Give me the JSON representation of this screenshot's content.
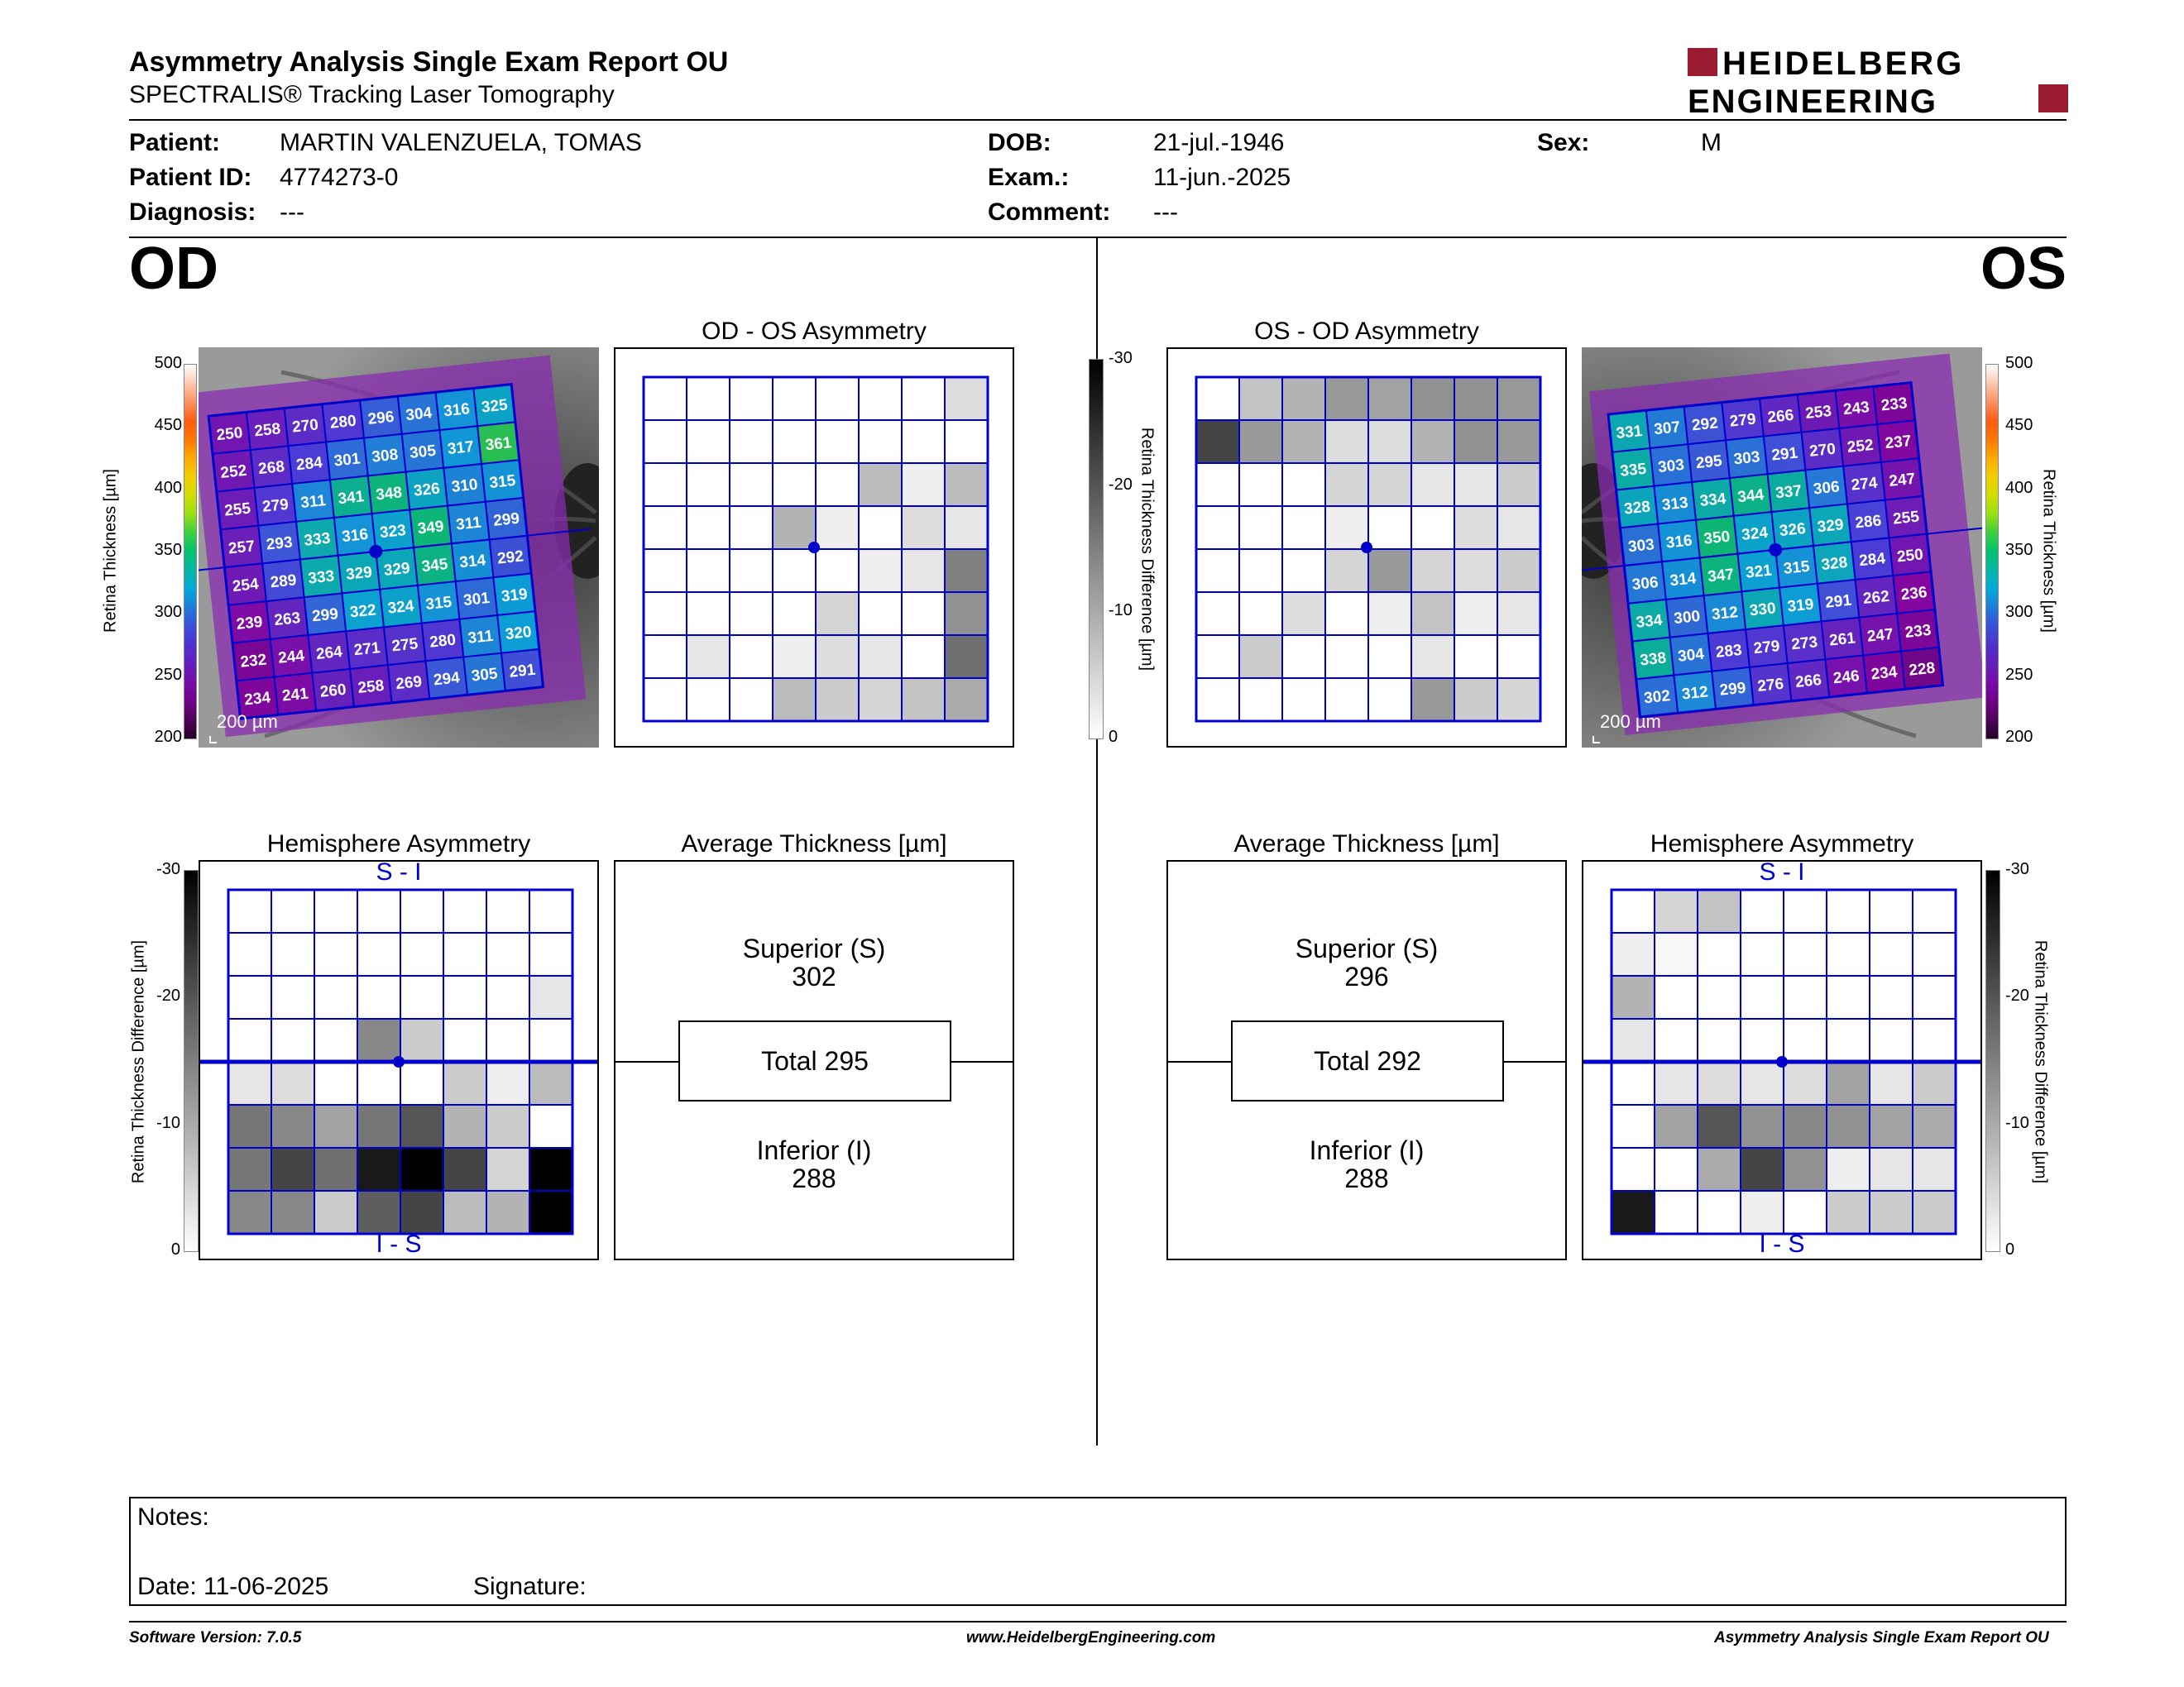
{
  "header": {
    "title": "Asymmetry Analysis Single Exam Report OU",
    "subtitle": "SPECTRALIS® Tracking Laser Tomography",
    "logo_line1": "HEIDELBERG",
    "logo_line2": "ENGINEERING",
    "logo_color": "#9b1b30"
  },
  "patient": {
    "patient_label": "Patient:",
    "patient_value": "MARTIN VALENZUELA, TOMAS",
    "id_label": "Patient ID:",
    "id_value": "4774273-0",
    "diagnosis_label": "Diagnosis:",
    "diagnosis_value": "---",
    "dob_label": "DOB:",
    "dob_value": "21-jul.-1946",
    "exam_label": "Exam.:",
    "exam_value": "11-jun.-2025",
    "comment_label": "Comment:",
    "comment_value": "---",
    "sex_label": "Sex:",
    "sex_value": "M"
  },
  "od": {
    "eye_label": "OD",
    "asym_title": "OD - OS Asymmetry",
    "hemi_title": "Hemisphere Asymmetry",
    "avg_title": "Average Thickness [µm]",
    "scale_label": "200 µm",
    "hemi_top": "S - I",
    "hemi_bottom": "I - S",
    "superior_label": "Superior (S)",
    "superior_value": "302",
    "total_label": "Total 295",
    "inferior_label": "Inferior (I)",
    "inferior_value": "288",
    "thickness_grid": [
      [
        250,
        258,
        270,
        280,
        296,
        304,
        316,
        325
      ],
      [
        252,
        268,
        284,
        301,
        308,
        305,
        317,
        361
      ],
      [
        255,
        279,
        311,
        341,
        348,
        326,
        310,
        315
      ],
      [
        257,
        293,
        333,
        316,
        323,
        349,
        311,
        299
      ],
      [
        254,
        289,
        333,
        329,
        329,
        345,
        314,
        292
      ],
      [
        239,
        263,
        299,
        322,
        324,
        315,
        301,
        319
      ],
      [
        232,
        244,
        264,
        271,
        275,
        280,
        311,
        320
      ],
      [
        234,
        241,
        260,
        258,
        269,
        294,
        305,
        291
      ]
    ],
    "asym_grid": [
      [
        0,
        0,
        0,
        0,
        0,
        0,
        0,
        4
      ],
      [
        0,
        0,
        0,
        0,
        0,
        0,
        0,
        0
      ],
      [
        0,
        0,
        0,
        0,
        0,
        8,
        2,
        8
      ],
      [
        0,
        0,
        0,
        9,
        2,
        0,
        4,
        3
      ],
      [
        0,
        0,
        0,
        0,
        0,
        2,
        3,
        15
      ],
      [
        0,
        0,
        0,
        0,
        5,
        0,
        0,
        13
      ],
      [
        0,
        3,
        0,
        2,
        4,
        3,
        0,
        17
      ],
      [
        0,
        0,
        0,
        8,
        6,
        5,
        7,
        10
      ]
    ],
    "hemi_grid": [
      [
        0,
        0,
        0,
        0,
        0,
        0,
        0,
        0
      ],
      [
        0,
        0,
        0,
        0,
        0,
        0,
        0,
        0
      ],
      [
        0,
        0,
        0,
        0,
        0,
        0,
        0,
        3
      ],
      [
        0,
        0,
        0,
        14,
        6,
        0,
        0,
        0
      ],
      [
        3,
        4,
        0,
        0,
        0,
        6,
        2,
        8
      ],
      [
        16,
        14,
        11,
        16,
        20,
        9,
        6,
        0
      ],
      [
        16,
        22,
        17,
        27,
        30,
        22,
        5,
        30
      ],
      [
        14,
        14,
        6,
        19,
        22,
        8,
        9,
        30
      ]
    ]
  },
  "os": {
    "eye_label": "OS",
    "asym_title": "OS - OD Asymmetry",
    "hemi_title": "Hemisphere Asymmetry",
    "avg_title": "Average Thickness [µm]",
    "scale_label": "200 µm",
    "hemi_top": "S - I",
    "hemi_bottom": "I - S",
    "superior_label": "Superior (S)",
    "superior_value": "296",
    "total_label": "Total 292",
    "inferior_label": "Inferior (I)",
    "inferior_value": "288",
    "thickness_grid": [
      [
        331,
        307,
        292,
        279,
        266,
        253,
        243,
        233
      ],
      [
        335,
        303,
        295,
        303,
        291,
        270,
        252,
        237
      ],
      [
        328,
        313,
        334,
        344,
        337,
        306,
        274,
        247
      ],
      [
        303,
        316,
        350,
        324,
        326,
        329,
        286,
        255
      ],
      [
        306,
        314,
        347,
        321,
        315,
        328,
        284,
        250
      ],
      [
        334,
        300,
        312,
        330,
        319,
        291,
        262,
        236
      ],
      [
        338,
        304,
        283,
        279,
        273,
        261,
        247,
        233
      ],
      [
        302,
        312,
        299,
        276,
        266,
        246,
        234,
        228
      ]
    ],
    "asym_grid": [
      [
        0,
        7,
        9,
        12,
        11,
        13,
        13,
        12
      ],
      [
        22,
        12,
        9,
        4,
        4,
        9,
        13,
        12
      ],
      [
        0,
        0,
        0,
        5,
        5,
        3,
        3,
        6
      ],
      [
        0,
        0,
        0,
        2,
        0,
        0,
        4,
        3
      ],
      [
        0,
        0,
        0,
        5,
        12,
        5,
        4,
        6
      ],
      [
        0,
        0,
        4,
        0,
        2,
        7,
        2,
        3
      ],
      [
        0,
        6,
        0,
        0,
        0,
        3,
        0,
        0
      ],
      [
        0,
        0,
        0,
        0,
        0,
        12,
        6,
        5
      ]
    ],
    "hemi_grid": [
      [
        0,
        5,
        7,
        0,
        0,
        0,
        0,
        0
      ],
      [
        2,
        1,
        0,
        0,
        0,
        0,
        0,
        0
      ],
      [
        9,
        0,
        0,
        0,
        0,
        0,
        0,
        0
      ],
      [
        3,
        0,
        0,
        0,
        0,
        0,
        0,
        0
      ],
      [
        0,
        3,
        4,
        3,
        4,
        11,
        3,
        6
      ],
      [
        0,
        11,
        20,
        13,
        14,
        13,
        11,
        10
      ],
      [
        0,
        0,
        10,
        22,
        13,
        2,
        3,
        3
      ],
      [
        27,
        0,
        0,
        2,
        0,
        6,
        6,
        6
      ]
    ]
  },
  "thickness_scale": {
    "label": "Retina Thickness [µm]",
    "ticks": [
      "500",
      "450",
      "400",
      "350",
      "300",
      "250",
      "200"
    ]
  },
  "difference_scale": {
    "label": "Retina Thickness Difference [µm]",
    "ticks": [
      "-30",
      "-20",
      "-10",
      "0"
    ]
  },
  "notes": {
    "notes_label": "Notes:",
    "date_label": "Date: 11-06-2025",
    "signature_label": "Signature:"
  },
  "footer": {
    "software": "Software Version: 7.0.5",
    "website": "www.HeidelbergEngineering.com",
    "report": "Asymmetry Analysis Single Exam Report OU"
  },
  "colors": {
    "grid_blue": "#0000cc",
    "brand_red": "#9b1b30"
  }
}
